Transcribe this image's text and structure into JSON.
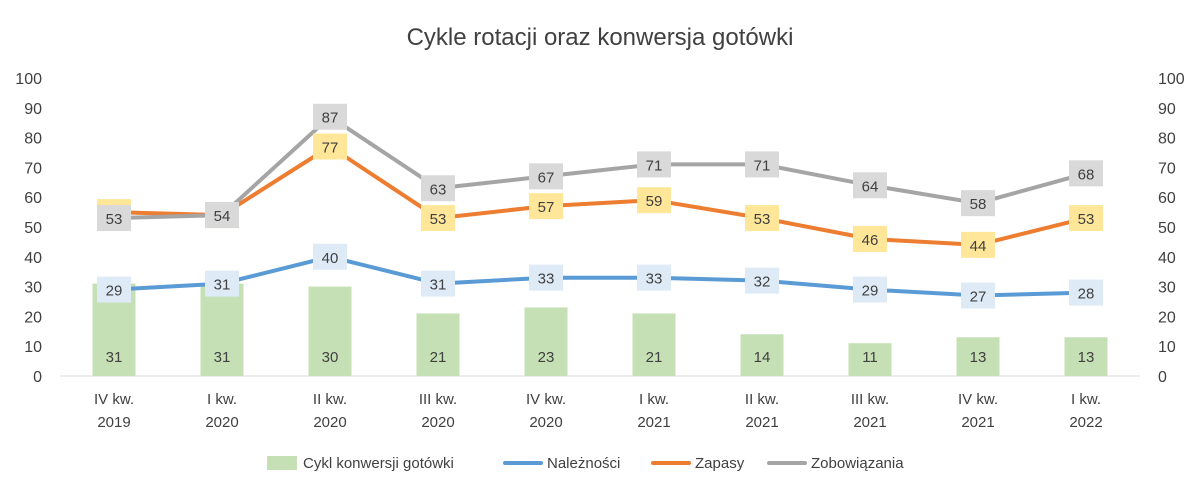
{
  "chart_data": {
    "type": "bar",
    "title": "Cykle rotacji oraz konwersja gotówki",
    "categories": [
      [
        "IV kw.",
        "2019"
      ],
      [
        "I kw.",
        "2020"
      ],
      [
        "II kw.",
        "2020"
      ],
      [
        "III kw.",
        "2020"
      ],
      [
        "IV kw.",
        "2020"
      ],
      [
        "I kw.",
        "2021"
      ],
      [
        "II kw.",
        "2021"
      ],
      [
        "III kw.",
        "2021"
      ],
      [
        "IV kw.",
        "2021"
      ],
      [
        "I kw.",
        "2022"
      ]
    ],
    "ylim": [
      0,
      100
    ],
    "yticks": [
      0,
      10,
      20,
      30,
      40,
      50,
      60,
      70,
      80,
      90,
      100
    ],
    "secondary_axis": true,
    "grid": false,
    "legend_position": "bottom",
    "series": [
      {
        "name": "Cykl konwersji gotówki",
        "type": "bar",
        "color": "#c5e0b4",
        "label_color": "#c5e0b4",
        "values": [
          31,
          31,
          30,
          21,
          23,
          21,
          14,
          11,
          13,
          13
        ]
      },
      {
        "name": "Należności",
        "type": "line",
        "color": "#5b9bd5",
        "label_color": "#deebf7",
        "values": [
          29,
          31,
          40,
          31,
          33,
          33,
          32,
          29,
          27,
          28
        ]
      },
      {
        "name": "Zapasy",
        "type": "line",
        "color": "#ed7d31",
        "label_color": "#ffe699",
        "values": [
          55,
          54,
          77,
          53,
          57,
          59,
          53,
          46,
          44,
          53
        ]
      },
      {
        "name": "Zobowiązania",
        "type": "line",
        "color": "#a5a5a5",
        "label_color": "#d9d9d9",
        "values": [
          53,
          54,
          87,
          63,
          67,
          71,
          71,
          64,
          58,
          68
        ]
      }
    ]
  }
}
